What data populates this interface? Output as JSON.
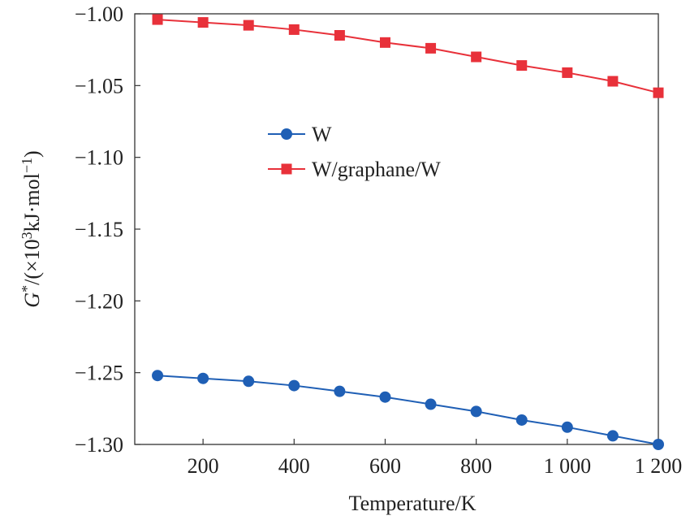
{
  "chart_data": {
    "type": "line",
    "xlabel": "Temperature/K",
    "ylabel_main": "G",
    "ylabel_sup": "*",
    "ylabel_rest": "/(×10",
    "ylabel_exp": "3",
    "ylabel_unit": "kJ·mol",
    "ylabel_unit_exp": "−1",
    "ylabel_close": ")",
    "xlim": [
      50,
      1200
    ],
    "ylim": [
      -1.3,
      -1.0
    ],
    "x_ticks": [
      200,
      400,
      600,
      800,
      1000,
      1200
    ],
    "x_tick_labels": [
      "200",
      "400",
      "600",
      "800",
      "1 000",
      "1 200"
    ],
    "y_ticks": [
      -1.0,
      -1.05,
      -1.1,
      -1.15,
      -1.2,
      -1.25,
      -1.3
    ],
    "y_tick_labels": [
      "−1.00",
      "−1.05",
      "−1.10",
      "−1.15",
      "−1.20",
      "−1.25",
      "−1.30"
    ],
    "grid": false,
    "legend_position": "upper-middle",
    "x": [
      100,
      200,
      300,
      400,
      500,
      600,
      700,
      800,
      900,
      1000,
      1100,
      1200
    ],
    "series": [
      {
        "name": "W",
        "color": "#1f5fb5",
        "marker": "circle",
        "values": [
          -1.252,
          -1.254,
          -1.256,
          -1.259,
          -1.263,
          -1.267,
          -1.272,
          -1.277,
          -1.283,
          -1.288,
          -1.294,
          -1.3
        ]
      },
      {
        "name": "W/graphane/W",
        "color": "#e8313a",
        "marker": "square",
        "values": [
          -1.004,
          -1.006,
          -1.008,
          -1.011,
          -1.015,
          -1.02,
          -1.024,
          -1.03,
          -1.036,
          -1.041,
          -1.047,
          -1.055
        ]
      }
    ]
  }
}
